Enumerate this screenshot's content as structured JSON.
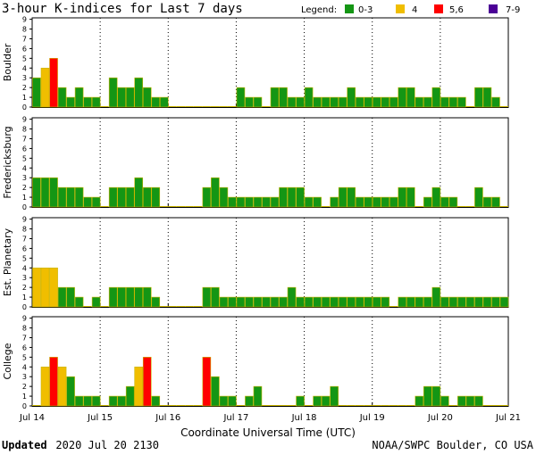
{
  "title": "3-hour K-indices for Last 7 days",
  "legend": {
    "label": "Legend:",
    "items": [
      {
        "label": "0-3",
        "color": "#149614"
      },
      {
        "label": "4",
        "color": "#f0be00"
      },
      {
        "label": "5,6",
        "color": "#ff0000"
      },
      {
        "label": "7-9",
        "color": "#4b0096"
      }
    ]
  },
  "footer": {
    "updated_label": "Updated",
    "updated_value": "2020 Jul 20 2130",
    "source": "NOAA/SWPC Boulder, CO USA"
  },
  "chart_data": [
    {
      "type": "bar",
      "ylabel": "Boulder",
      "ylim": [
        0,
        9
      ],
      "yticks": [
        "0",
        "1",
        "2",
        "3",
        "4",
        "5",
        "6",
        "7",
        "8",
        "9"
      ],
      "x_tick_labels": [
        "Jul 14",
        "Jul 15",
        "Jul 16",
        "Jul 17",
        "Jul 18",
        "Jul 19",
        "Jul 20",
        "Jul 21"
      ],
      "xlabel": "Coordinate Universal Time (UTC)",
      "values": [
        3,
        4,
        5,
        2,
        1,
        2,
        1,
        1,
        0,
        3,
        2,
        2,
        3,
        2,
        1,
        1,
        0,
        0,
        0,
        0,
        0,
        0,
        0,
        0,
        2,
        1,
        1,
        0,
        2,
        2,
        1,
        1,
        2,
        1,
        1,
        1,
        1,
        2,
        1,
        1,
        1,
        1,
        1,
        2,
        2,
        1,
        1,
        2,
        1,
        1,
        1,
        0,
        2,
        2,
        1,
        0
      ]
    },
    {
      "type": "bar",
      "ylabel": "Fredericksburg",
      "ylim": [
        0,
        9
      ],
      "yticks": [
        "0",
        "1",
        "2",
        "3",
        "4",
        "5",
        "6",
        "7",
        "8",
        "9"
      ],
      "x_tick_labels": [
        "Jul 14",
        "Jul 15",
        "Jul 16",
        "Jul 17",
        "Jul 18",
        "Jul 19",
        "Jul 20",
        "Jul 21"
      ],
      "values": [
        3,
        3,
        3,
        2,
        2,
        2,
        1,
        1,
        0,
        2,
        2,
        2,
        3,
        2,
        2,
        0,
        0,
        0,
        0,
        0,
        2,
        3,
        2,
        1,
        1,
        1,
        1,
        1,
        1,
        2,
        2,
        2,
        1,
        1,
        0,
        1,
        2,
        2,
        1,
        1,
        1,
        1,
        1,
        2,
        2,
        0,
        1,
        2,
        1,
        1,
        0,
        0,
        2,
        1,
        1,
        0
      ]
    },
    {
      "type": "bar",
      "ylabel": "Est. Planetary",
      "ylim": [
        0,
        9
      ],
      "yticks": [
        "0",
        "1",
        "2",
        "3",
        "4",
        "5",
        "6",
        "7",
        "8",
        "9"
      ],
      "x_tick_labels": [
        "Jul 14",
        "Jul 15",
        "Jul 16",
        "Jul 17",
        "Jul 18",
        "Jul 19",
        "Jul 20",
        "Jul 21"
      ],
      "values": [
        4,
        4,
        4,
        2,
        2,
        1,
        0,
        1,
        0,
        2,
        2,
        2,
        2,
        2,
        1,
        0,
        0,
        0,
        0,
        0,
        2,
        2,
        1,
        1,
        1,
        1,
        1,
        1,
        1,
        1,
        2,
        1,
        1,
        1,
        1,
        1,
        1,
        1,
        1,
        1,
        1,
        1,
        0,
        1,
        1,
        1,
        1,
        2,
        1,
        1,
        1,
        1,
        1,
        1,
        1,
        1
      ]
    },
    {
      "type": "bar",
      "ylabel": "College",
      "ylim": [
        0,
        9
      ],
      "yticks": [
        "0",
        "1",
        "2",
        "3",
        "4",
        "5",
        "6",
        "7",
        "8",
        "9"
      ],
      "x_tick_labels": [
        "Jul 14",
        "Jul 15",
        "Jul 16",
        "Jul 17",
        "Jul 18",
        "Jul 19",
        "Jul 20",
        "Jul 21"
      ],
      "values": [
        0,
        4,
        5,
        4,
        3,
        1,
        1,
        1,
        0,
        1,
        1,
        2,
        4,
        5,
        1,
        0,
        0,
        0,
        0,
        0,
        5,
        3,
        1,
        1,
        0,
        1,
        2,
        0,
        0,
        0,
        0,
        1,
        0,
        1,
        1,
        2,
        0,
        0,
        0,
        0,
        0,
        0,
        0,
        0,
        0,
        1,
        2,
        2,
        1,
        0,
        1,
        1,
        1,
        0,
        0,
        0
      ]
    }
  ]
}
